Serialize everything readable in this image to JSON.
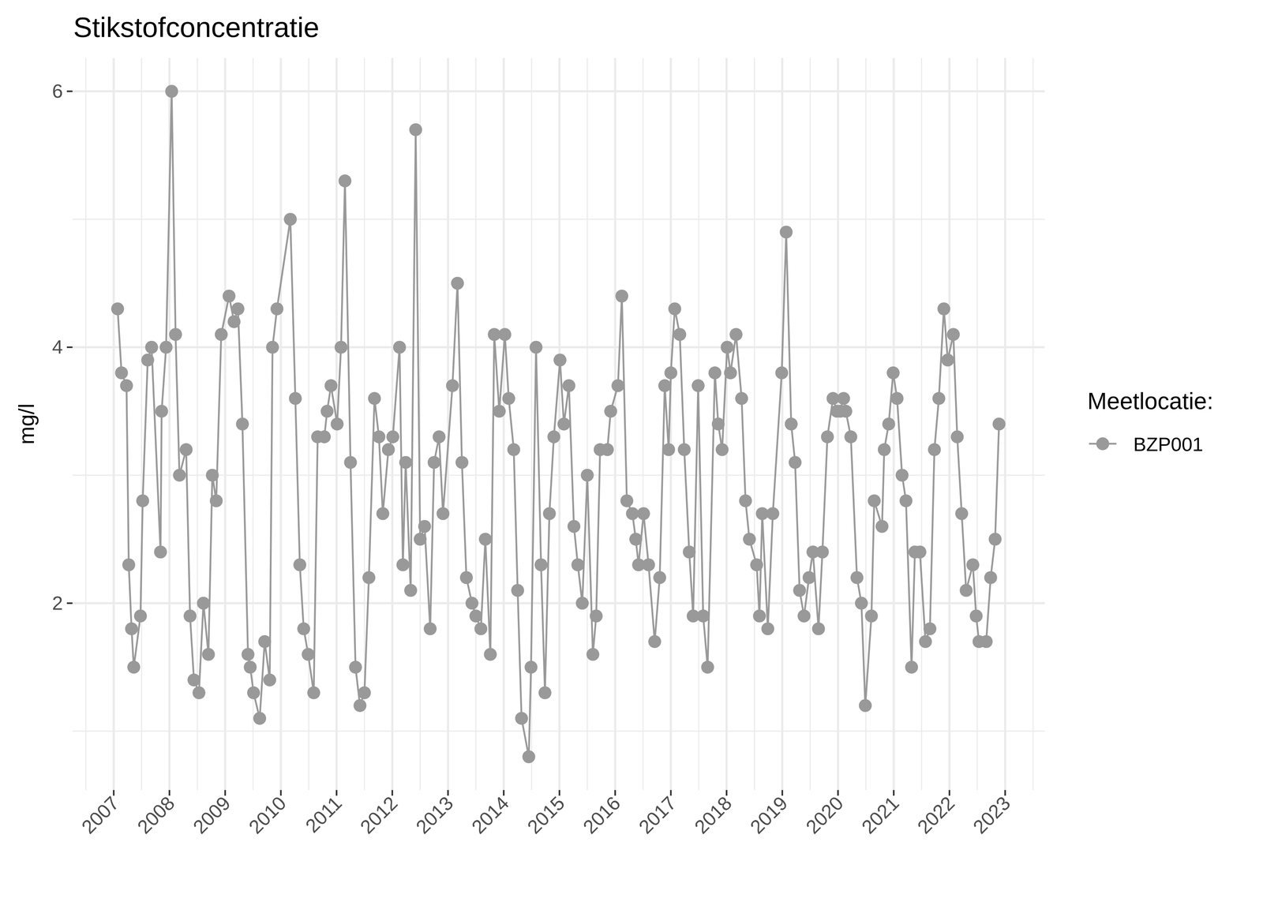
{
  "chart_data": {
    "type": "line",
    "title": "Stikstofconcentratie",
    "y_label": "mg/l",
    "legend_title": "Meetlocatie:",
    "x": [
      2007.07,
      2007.14,
      2007.23,
      2007.27,
      2007.32,
      2007.36,
      2007.48,
      2007.52,
      2007.61,
      2007.68,
      2007.84,
      2007.86,
      2007.94,
      2008.04,
      2008.11,
      2008.18,
      2008.3,
      2008.37,
      2008.44,
      2008.53,
      2008.61,
      2008.7,
      2008.77,
      2008.84,
      2008.93,
      2009.07,
      2009.16,
      2009.23,
      2009.31,
      2009.41,
      2009.45,
      2009.51,
      2009.62,
      2009.71,
      2009.8,
      2009.85,
      2009.93,
      2010.17,
      2010.26,
      2010.34,
      2010.41,
      2010.49,
      2010.59,
      2010.66,
      2010.78,
      2010.83,
      2010.9,
      2011.01,
      2011.08,
      2011.15,
      2011.25,
      2011.34,
      2011.42,
      2011.5,
      2011.58,
      2011.68,
      2011.76,
      2011.83,
      2011.93,
      2012.01,
      2012.13,
      2012.19,
      2012.24,
      2012.33,
      2012.42,
      2012.5,
      2012.58,
      2012.68,
      2012.75,
      2012.84,
      2012.91,
      2013.08,
      2013.17,
      2013.25,
      2013.33,
      2013.43,
      2013.5,
      2013.59,
      2013.67,
      2013.76,
      2013.83,
      2013.92,
      2014.02,
      2014.09,
      2014.18,
      2014.25,
      2014.32,
      2014.45,
      2014.49,
      2014.58,
      2014.67,
      2014.74,
      2014.82,
      2014.9,
      2015.01,
      2015.08,
      2015.17,
      2015.26,
      2015.33,
      2015.41,
      2015.5,
      2015.6,
      2015.66,
      2015.73,
      2015.86,
      2015.92,
      2016.05,
      2016.12,
      2016.21,
      2016.31,
      2016.37,
      2016.42,
      2016.51,
      2016.6,
      2016.71,
      2016.8,
      2016.89,
      2016.96,
      2017.0,
      2017.07,
      2017.16,
      2017.24,
      2017.33,
      2017.4,
      2017.49,
      2017.58,
      2017.66,
      2017.79,
      2017.85,
      2017.92,
      2018.01,
      2018.07,
      2018.17,
      2018.27,
      2018.34,
      2018.41,
      2018.54,
      2018.59,
      2018.64,
      2018.74,
      2018.83,
      2018.99,
      2019.07,
      2019.16,
      2019.23,
      2019.31,
      2019.39,
      2019.48,
      2019.55,
      2019.65,
      2019.72,
      2019.81,
      2019.91,
      2019.98,
      2020.04,
      2020.1,
      2020.14,
      2020.23,
      2020.34,
      2020.42,
      2020.49,
      2020.6,
      2020.65,
      2020.79,
      2020.83,
      2020.91,
      2020.99,
      2021.06,
      2021.15,
      2021.22,
      2021.32,
      2021.38,
      2021.47,
      2021.57,
      2021.65,
      2021.73,
      2021.81,
      2021.9,
      2021.97,
      2022.07,
      2022.14,
      2022.22,
      2022.3,
      2022.42,
      2022.48,
      2022.53,
      2022.66,
      2022.74,
      2022.82,
      2022.89
    ],
    "series": [
      {
        "name": "BZP001",
        "color": "#999999",
        "marker": "circle",
        "line_style": "solid",
        "values": [
          4.3,
          3.8,
          3.7,
          2.3,
          1.8,
          1.5,
          1.9,
          2.8,
          3.9,
          4.0,
          2.4,
          3.5,
          4.0,
          6.0,
          4.1,
          3.0,
          3.2,
          1.9,
          1.4,
          1.3,
          2.0,
          1.6,
          3.0,
          2.8,
          4.1,
          4.4,
          4.2,
          4.3,
          3.4,
          1.6,
          1.5,
          1.3,
          1.1,
          1.7,
          1.4,
          4.0,
          4.3,
          5.0,
          3.6,
          2.3,
          1.8,
          1.6,
          1.3,
          3.3,
          3.3,
          3.5,
          3.7,
          3.4,
          4.0,
          5.3,
          3.1,
          1.5,
          1.2,
          1.3,
          2.2,
          3.6,
          3.3,
          2.7,
          3.2,
          3.3,
          4.0,
          2.3,
          3.1,
          2.1,
          5.7,
          2.5,
          2.6,
          1.8,
          3.1,
          3.3,
          2.7,
          3.7,
          4.5,
          3.1,
          2.2,
          2.0,
          1.9,
          1.8,
          2.5,
          1.6,
          4.1,
          3.5,
          4.1,
          3.6,
          3.2,
          2.1,
          1.1,
          0.8,
          1.5,
          4.0,
          2.3,
          1.3,
          2.7,
          3.3,
          3.9,
          3.4,
          3.7,
          2.6,
          2.3,
          2.0,
          3.0,
          1.6,
          1.9,
          3.2,
          3.2,
          3.5,
          3.7,
          4.4,
          2.8,
          2.7,
          2.5,
          2.3,
          2.7,
          2.3,
          1.7,
          2.2,
          3.7,
          3.2,
          3.8,
          4.3,
          4.1,
          3.2,
          2.4,
          1.9,
          3.7,
          1.9,
          1.5,
          3.8,
          3.4,
          3.2,
          4.0,
          3.8,
          4.1,
          3.6,
          2.8,
          2.5,
          2.3,
          1.9,
          2.7,
          1.8,
          2.7,
          3.8,
          4.9,
          3.4,
          3.1,
          2.1,
          1.9,
          2.2,
          2.4,
          1.8,
          2.4,
          3.3,
          3.6,
          3.5,
          3.5,
          3.6,
          3.5,
          3.3,
          2.2,
          2.0,
          1.2,
          1.9,
          2.8,
          2.6,
          3.2,
          3.4,
          3.8,
          3.6,
          3.0,
          2.8,
          1.5,
          2.4,
          2.4,
          1.7,
          1.8,
          3.2,
          3.6,
          4.3,
          3.9,
          4.1,
          3.3,
          2.7,
          2.1,
          2.3,
          1.9,
          1.7,
          1.7,
          2.2,
          2.5,
          3.4
        ]
      }
    ],
    "xlim": [
      2006.26,
      2023.71
    ],
    "ylim": [
      0.54,
      6.26
    ],
    "xticks": [
      2007,
      2008,
      2009,
      2010,
      2011,
      2012,
      2013,
      2014,
      2015,
      2016,
      2017,
      2018,
      2019,
      2020,
      2021,
      2022,
      2023
    ],
    "yticks": [
      2,
      4,
      6
    ],
    "grid": true,
    "legend": "right"
  }
}
